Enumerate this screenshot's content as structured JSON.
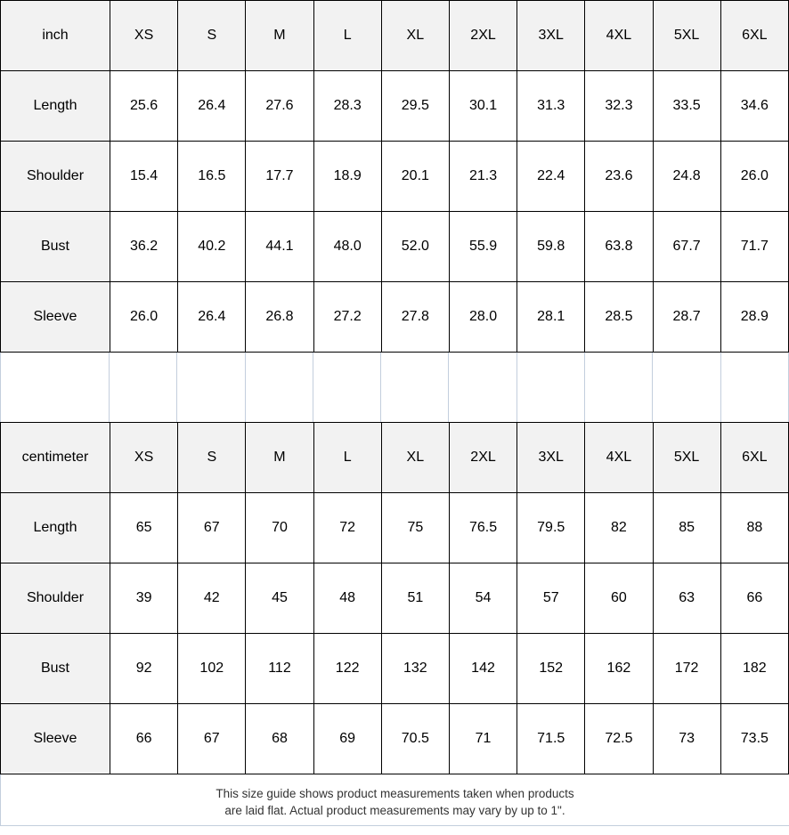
{
  "tables": [
    {
      "id": "inch",
      "unit_label": "inch",
      "size_headers": [
        "XS",
        "S",
        "M",
        "L",
        "XL",
        "2XL",
        "3XL",
        "4XL",
        "5XL",
        "6XL"
      ],
      "rows": [
        {
          "label": "Length",
          "values": [
            "25.6",
            "26.4",
            "27.6",
            "28.3",
            "29.5",
            "30.1",
            "31.3",
            "32.3",
            "33.5",
            "34.6"
          ]
        },
        {
          "label": "Shoulder",
          "values": [
            "15.4",
            "16.5",
            "17.7",
            "18.9",
            "20.1",
            "21.3",
            "22.4",
            "23.6",
            "24.8",
            "26.0"
          ]
        },
        {
          "label": "Bust",
          "values": [
            "36.2",
            "40.2",
            "44.1",
            "48.0",
            "52.0",
            "55.9",
            "59.8",
            "63.8",
            "67.7",
            "71.7"
          ]
        },
        {
          "label": "Sleeve",
          "values": [
            "26.0",
            "26.4",
            "26.8",
            "27.2",
            "27.8",
            "28.0",
            "28.1",
            "28.5",
            "28.7",
            "28.9"
          ]
        }
      ]
    },
    {
      "id": "centimeter",
      "unit_label": "centimeter",
      "size_headers": [
        "XS",
        "S",
        "M",
        "L",
        "XL",
        "2XL",
        "3XL",
        "4XL",
        "5XL",
        "6XL"
      ],
      "rows": [
        {
          "label": "Length",
          "values": [
            "65",
            "67",
            "70",
            "72",
            "75",
            "76.5",
            "79.5",
            "82",
            "85",
            "88"
          ]
        },
        {
          "label": "Shoulder",
          "values": [
            "39",
            "42",
            "45",
            "48",
            "51",
            "54",
            "57",
            "60",
            "63",
            "66"
          ]
        },
        {
          "label": "Bust",
          "values": [
            "92",
            "102",
            "112",
            "122",
            "132",
            "142",
            "152",
            "162",
            "172",
            "182"
          ]
        },
        {
          "label": "Sleeve",
          "values": [
            "66",
            "67",
            "68",
            "69",
            "70.5",
            "71",
            "71.5",
            "72.5",
            "73",
            "73.5"
          ]
        }
      ]
    }
  ],
  "footer": {
    "line1": "This size guide shows product measurements taken when products",
    "line2": "are laid flat. Actual product measurements may vary by up to 1\"."
  },
  "colors": {
    "header_bg": "#f2f2f2",
    "cell_bg": "#ffffff",
    "table_border": "#000000",
    "gridline": "#c3cedd",
    "cell_text": "#000000",
    "footer_text": "#333333",
    "page_bg": "#ffffff"
  }
}
